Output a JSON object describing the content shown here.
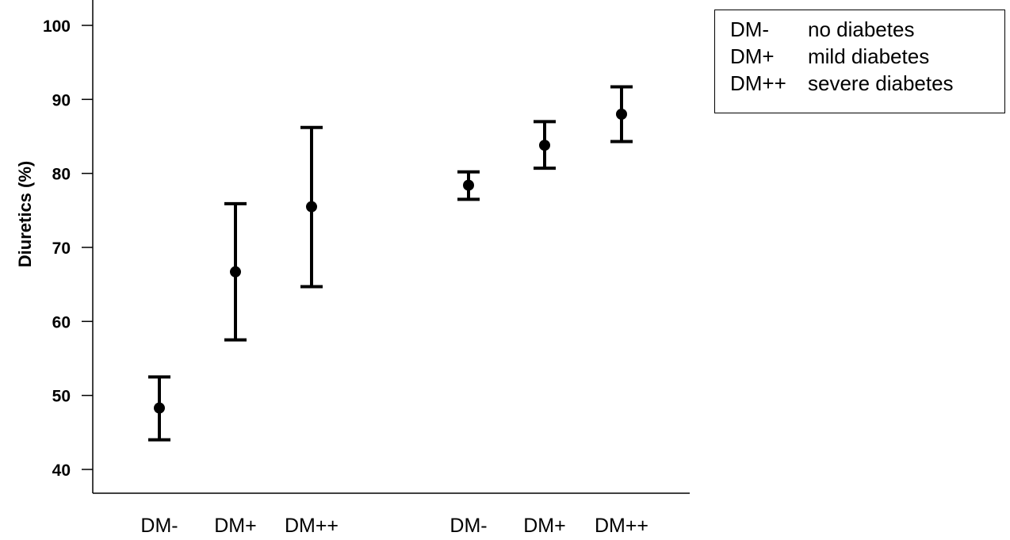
{
  "chart_data": {
    "type": "scatter",
    "title": "",
    "xlabel": "",
    "ylabel": "Diuretics (%)",
    "ylim": [
      37,
      103
    ],
    "yticks": [
      40,
      50,
      60,
      70,
      80,
      90,
      100
    ],
    "grid": false,
    "legend_placement": "top-right",
    "categories": [
      "DM-",
      "DM+",
      "DM++",
      "DM-",
      "DM+",
      "DM++"
    ],
    "series": [
      {
        "values": [
          48.3,
          66.7,
          75.5,
          78.4,
          83.8,
          88.0
        ],
        "error_low": [
          44.0,
          57.5,
          64.7,
          76.5,
          80.7,
          84.3
        ],
        "error_high": [
          52.5,
          75.9,
          86.2,
          80.2,
          87.0,
          91.7
        ]
      }
    ],
    "marker_color": "#000000",
    "legend": [
      {
        "code": "DM-",
        "description": "no diabetes"
      },
      {
        "code": "DM+",
        "description": "mild diabetes"
      },
      {
        "code": "DM++",
        "description": "severe diabetes"
      }
    ]
  }
}
